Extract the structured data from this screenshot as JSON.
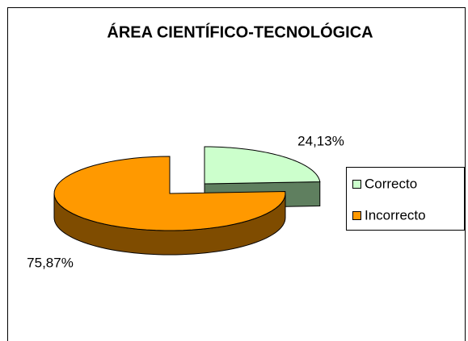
{
  "chart_data": {
    "type": "pie3d",
    "title": "ÁREA CIENTÍFICO-TECNOLÓGICA",
    "categories": [
      "Correcto",
      "Incorrecto"
    ],
    "values": [
      24.13,
      75.87
    ],
    "value_labels": [
      "24,13%",
      "75,87%"
    ],
    "colors": [
      "#ccffcc",
      "#ff9900"
    ],
    "side_colors": [
      "#5f7f5f",
      "#7f4c00"
    ],
    "legend": "right"
  }
}
